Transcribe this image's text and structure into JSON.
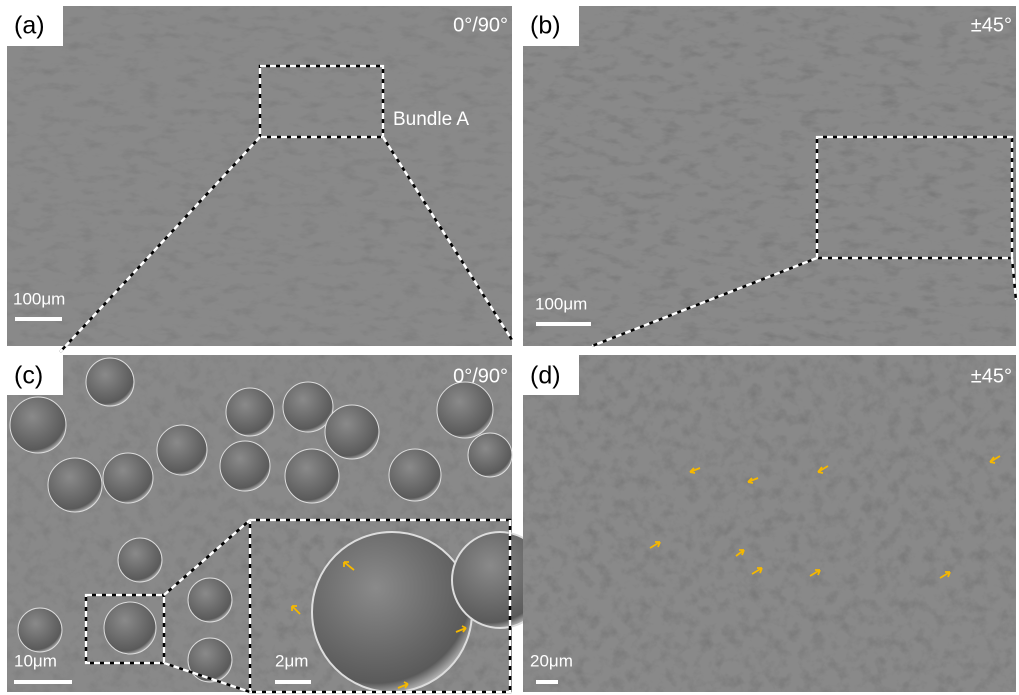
{
  "panels": [
    {
      "label": "(a)",
      "orientation": "0°/90°",
      "scale_bar": "100μm",
      "annotation": "Bundle A"
    },
    {
      "label": "(b)",
      "orientation": "±45°",
      "scale_bar": "100μm"
    },
    {
      "label": "(c)",
      "orientation": "0°/90°",
      "scale_bar": "10μm",
      "inset_scale_bar": "2μm"
    },
    {
      "label": "(d)",
      "orientation": "±45°",
      "scale_bar": "20μm"
    }
  ]
}
